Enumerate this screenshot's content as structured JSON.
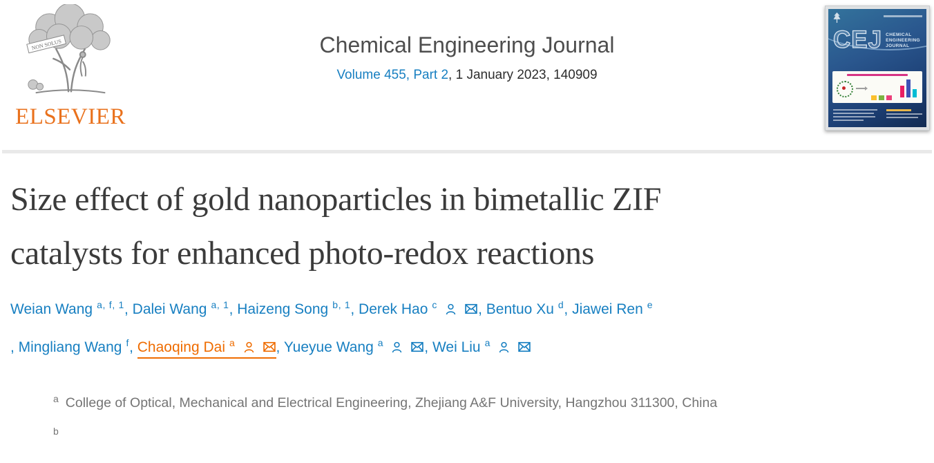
{
  "header": {
    "publisher_wordmark": "ELSEVIER",
    "logo_motto": "NON SOLUS",
    "journal_title": "Chemical Engineering Journal",
    "volume_link": "Volume 455, Part 2",
    "issue_suffix": ", 1 January 2023, 140909",
    "cover": {
      "abbrev": "CEJ",
      "name_lines": [
        "CHEMICAL",
        "ENGINEERING",
        "JOURNAL"
      ]
    }
  },
  "article": {
    "title_full": "Size effect of gold nanoparticles in bimetallic ZIF catalysts for enhanced photo-redox reactions",
    "title_line1": "Size effect of gold nanoparticles in bimetallic ZIF",
    "title_line2": "catalysts for enhanced photo-redox reactions"
  },
  "authors": {
    "separator": ", ",
    "line2_leading_separator": ", ",
    "line1": [
      {
        "name": "Weian Wang",
        "sup": "a, f, 1",
        "icons": false
      },
      {
        "name": "Dalei Wang",
        "sup": "a, 1",
        "icons": false
      },
      {
        "name": "Haizeng Song",
        "sup": "b, 1",
        "icons": false
      },
      {
        "name": "Derek Hao",
        "sup": "c",
        "icons": true
      },
      {
        "name": "Bentuo Xu",
        "sup": "d",
        "icons": false
      },
      {
        "name": "Jiawei Ren",
        "sup": "e",
        "icons": false
      }
    ],
    "line2": [
      {
        "name": "Mingliang Wang",
        "sup": "f",
        "icons": false
      },
      {
        "name": "Chaoqing Dai",
        "sup": "a",
        "icons": true,
        "highlight": true
      },
      {
        "name": "Yueyue Wang",
        "sup": "a",
        "icons": true
      },
      {
        "name": "Wei Liu",
        "sup": "a",
        "icons": true
      }
    ]
  },
  "affiliations": [
    {
      "label": "a",
      "text": "College of Optical, Mechanical and Electrical Engineering, Zhejiang A&F University, Hangzhou 311300, China"
    },
    {
      "label": "b",
      "text": ""
    }
  ],
  "icons": {
    "author_profile": "person-outline-icon",
    "email": "envelope-icon",
    "publisher_logo": "elsevier-tree-icon"
  },
  "colors": {
    "link_blue": "#177fc1",
    "author_highlight_orange": "#ef6c00",
    "elsevier_orange": "#e9711c",
    "article_title_gray": "#3b3b3b",
    "journal_title_gray": "#4e4e4e",
    "affiliation_gray": "#747474",
    "divider_gray": "#e9e9e9",
    "cover_blue": "#1d4076"
  }
}
